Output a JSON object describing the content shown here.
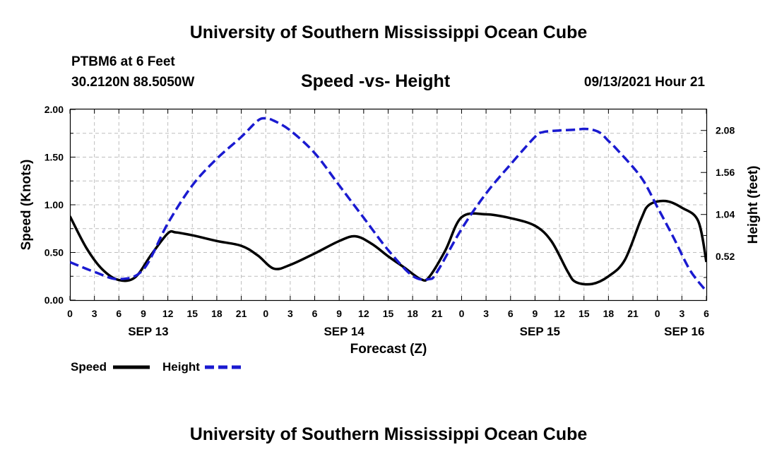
{
  "header": {
    "title": "University of Southern Mississippi Ocean Cube",
    "station": "PTBM6 at 6 Feet",
    "coords": "30.2120N  88.5050W",
    "chart_title": "Speed -vs- Height",
    "timestamp": "09/13/2021 Hour 21"
  },
  "footer": {
    "title": "University of Southern Mississippi Ocean Cube"
  },
  "legend": {
    "speed_label": "Speed",
    "height_label": "Height",
    "speed_color": "#000000",
    "height_color": "#1a1ad0"
  },
  "chart_data": {
    "type": "line",
    "title": "Speed -vs- Height",
    "xlabel": "Forecast (Z)",
    "ylabel": "Speed (Knots)",
    "y2label": "Height (feet)",
    "x_range_hours": [
      0,
      78
    ],
    "ylim": [
      0,
      2.0
    ],
    "y_ticks": [
      "0.00",
      "0.50",
      "1.00",
      "1.50",
      "2.00"
    ],
    "y2lim": [
      -0.02,
      2.34
    ],
    "y2_ticks": [
      {
        "value": 0.52,
        "label": "0.52"
      },
      {
        "value": 1.04,
        "label": "1.04"
      },
      {
        "value": 1.56,
        "label": "1.56"
      },
      {
        "value": 2.08,
        "label": "2.08"
      }
    ],
    "x_tick_labels": [
      "0",
      "3",
      "6",
      "9",
      "12",
      "15",
      "18",
      "21",
      "0",
      "3",
      "6",
      "9",
      "12",
      "15",
      "18",
      "21",
      "0",
      "3",
      "6",
      "9",
      "12",
      "15",
      "18",
      "21",
      "0",
      "3",
      "6"
    ],
    "date_labels": [
      {
        "label": "SEP 13",
        "hour": 9.6
      },
      {
        "label": "SEP 14",
        "hour": 33.6
      },
      {
        "label": "SEP 15",
        "hour": 57.6
      },
      {
        "label": "SEP 16",
        "hour": 75.3
      }
    ],
    "series": [
      {
        "name": "Speed",
        "axis": "left",
        "x": [
          0,
          2,
          4,
          6,
          8,
          10,
          12,
          13,
          15,
          18,
          21,
          23,
          25,
          27,
          30,
          33,
          35,
          37,
          39,
          41,
          43,
          44,
          46,
          48,
          51,
          54,
          57,
          59,
          61,
          62,
          64,
          66,
          68,
          70,
          71,
          73,
          75,
          77,
          78
        ],
        "values": [
          0.88,
          0.55,
          0.32,
          0.21,
          0.24,
          0.48,
          0.7,
          0.71,
          0.68,
          0.62,
          0.57,
          0.47,
          0.33,
          0.37,
          0.49,
          0.62,
          0.67,
          0.59,
          0.46,
          0.34,
          0.22,
          0.24,
          0.52,
          0.87,
          0.9,
          0.86,
          0.78,
          0.62,
          0.3,
          0.19,
          0.17,
          0.25,
          0.42,
          0.85,
          1.0,
          1.04,
          0.97,
          0.83,
          0.4
        ]
      },
      {
        "name": "Height",
        "axis": "right",
        "x": [
          0,
          3,
          6,
          9,
          12,
          15,
          18,
          21,
          23,
          24,
          25,
          27,
          30,
          33,
          36,
          39,
          42,
          44,
          45,
          48,
          51,
          54,
          57,
          58,
          60,
          62,
          63,
          64,
          65,
          66,
          67,
          70,
          72,
          74,
          76,
          78
        ],
        "values": [
          0.45,
          0.33,
          0.24,
          0.36,
          0.93,
          1.4,
          1.73,
          2.0,
          2.2,
          2.23,
          2.2,
          2.08,
          1.8,
          1.4,
          1.0,
          0.6,
          0.28,
          0.24,
          0.33,
          0.86,
          1.3,
          1.66,
          2.0,
          2.06,
          2.08,
          2.09,
          2.1,
          2.09,
          2.05,
          1.95,
          1.85,
          1.5,
          1.13,
          0.75,
          0.35,
          0.09
        ]
      }
    ]
  }
}
